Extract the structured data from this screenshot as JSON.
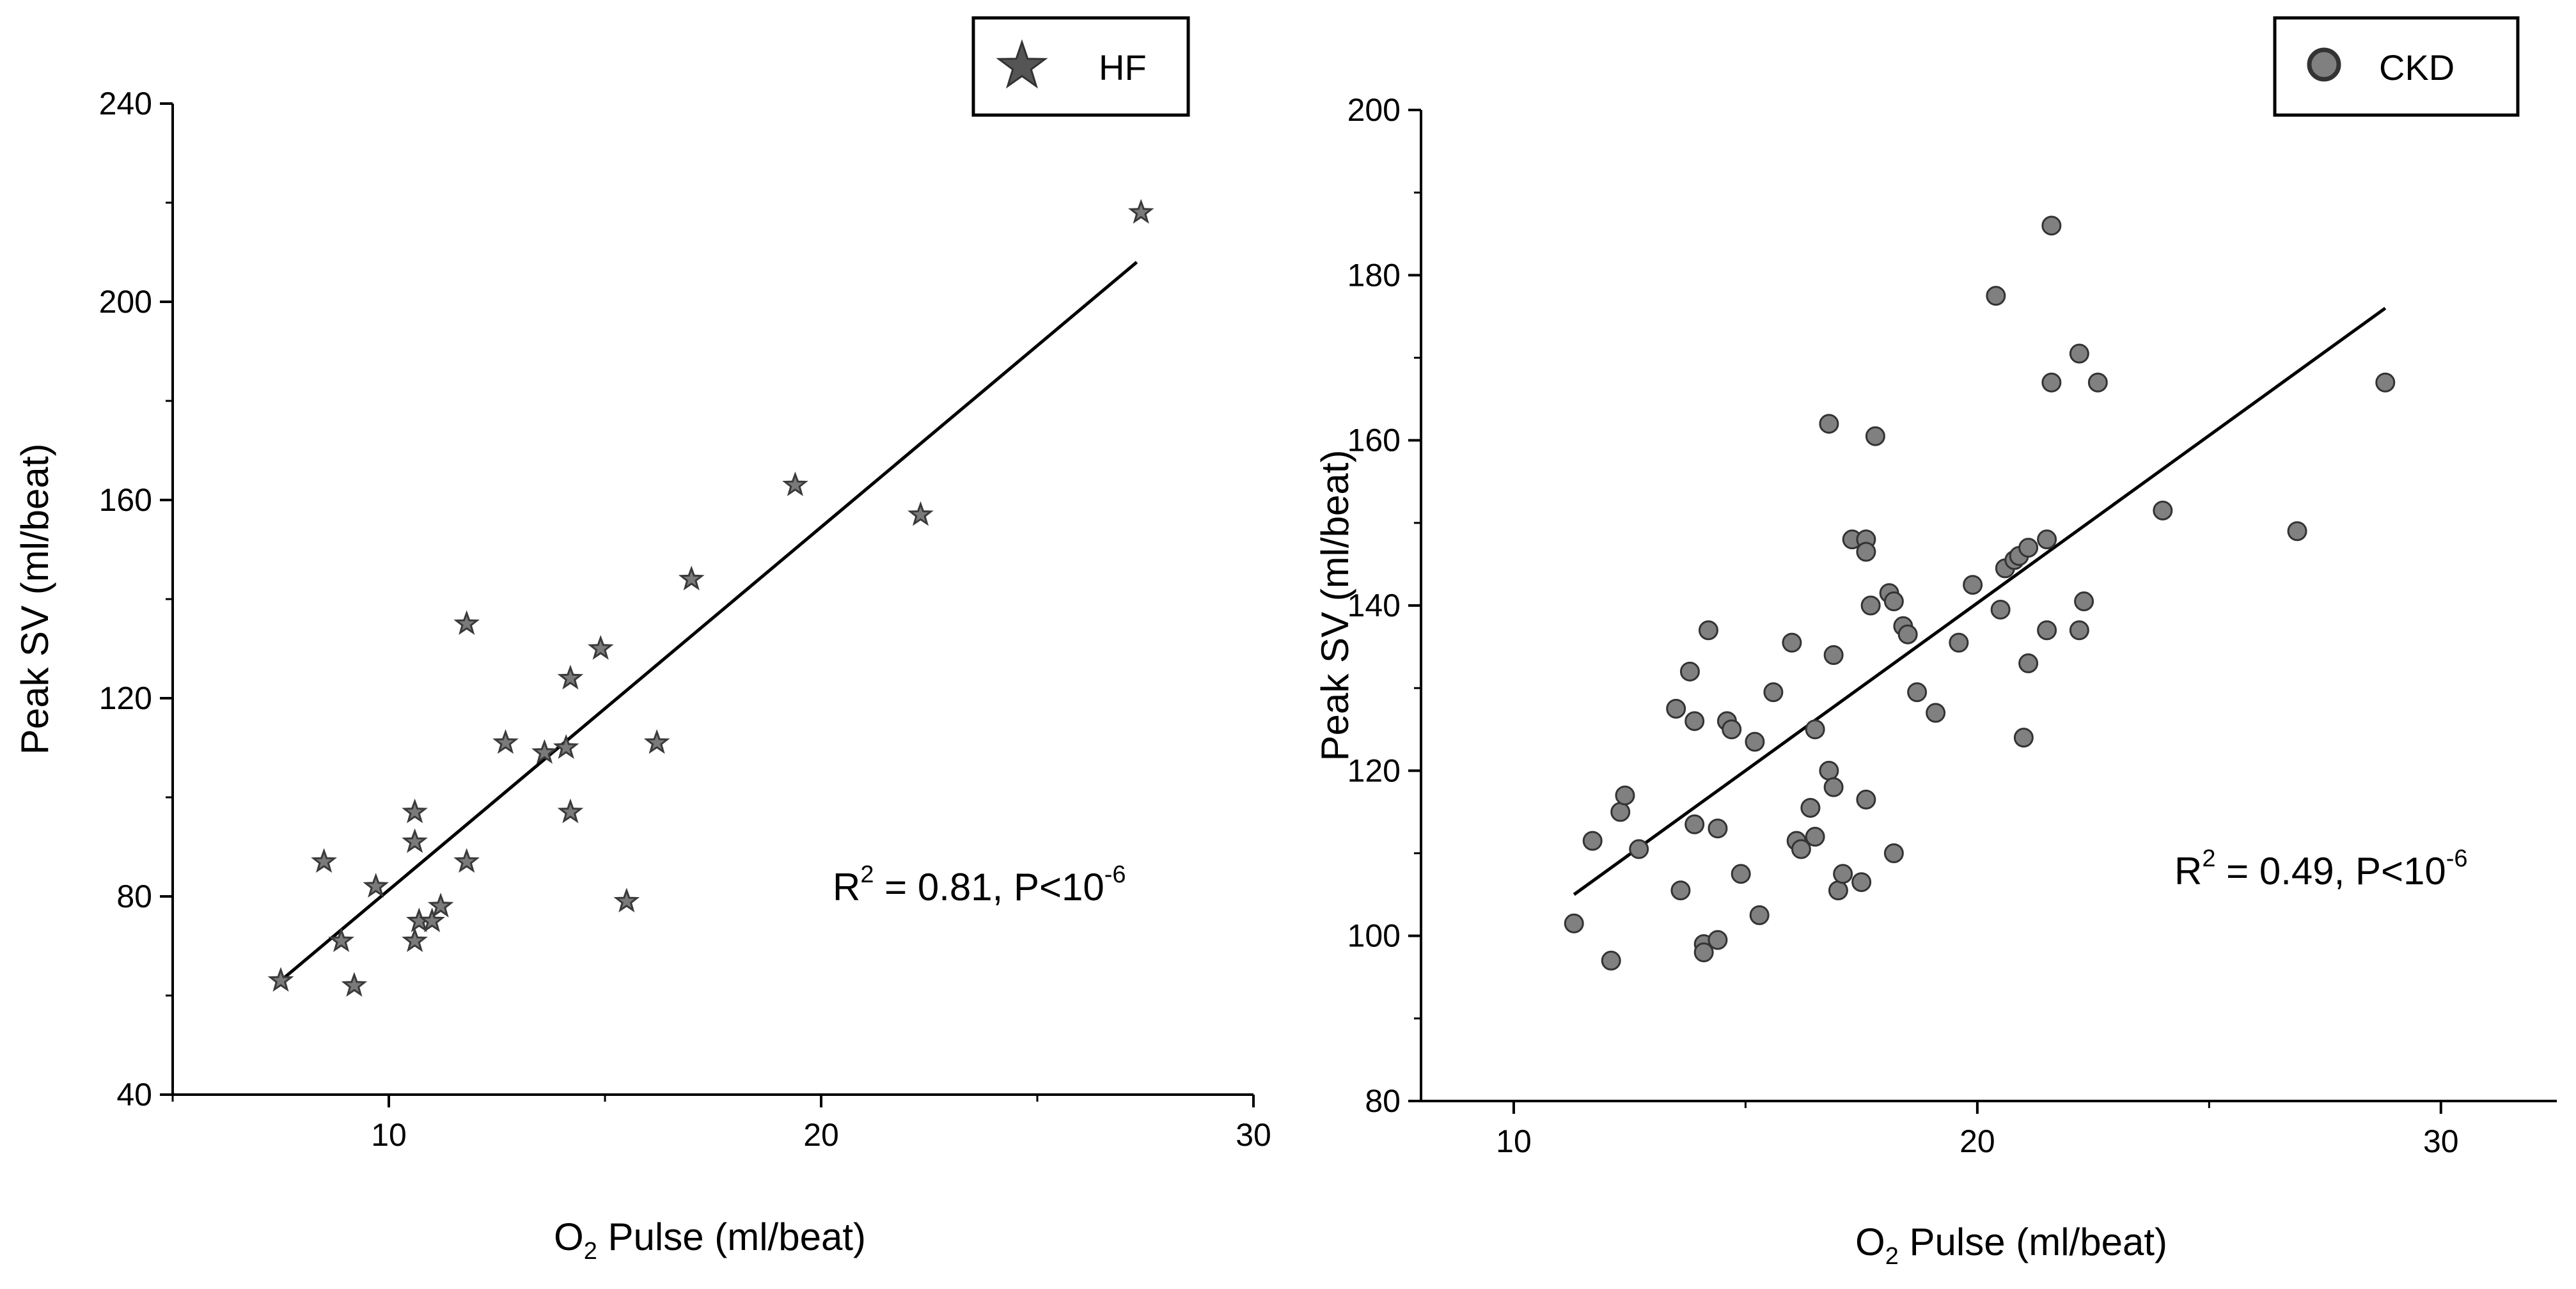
{
  "chart_data": [
    {
      "type": "scatter",
      "legend": "HF",
      "marker": "star",
      "xlabel_main": "O",
      "xlabel_sub": "2",
      "xlabel_rest": " Pulse (ml/beat)",
      "ylabel": "Peak SV (ml/beat)",
      "xlim": [
        5,
        30
      ],
      "ylim": [
        40,
        240
      ],
      "xticks": [
        10,
        20,
        30
      ],
      "yticks": [
        40,
        80,
        120,
        160,
        200,
        240
      ],
      "annotation": {
        "r_label": "R",
        "r_exp": "2",
        "r_value": " = 0.81, P<10",
        "p_exp": "-6"
      },
      "fit_line": [
        [
          7.5,
          63
        ],
        [
          27.3,
          208
        ]
      ],
      "points": [
        [
          7.5,
          63
        ],
        [
          8.5,
          87
        ],
        [
          8.9,
          71
        ],
        [
          9.2,
          62
        ],
        [
          9.7,
          82
        ],
        [
          10.6,
          97
        ],
        [
          10.6,
          91
        ],
        [
          10.6,
          71
        ],
        [
          10.7,
          75
        ],
        [
          11.0,
          75
        ],
        [
          11.2,
          78
        ],
        [
          11.8,
          135
        ],
        [
          11.8,
          87
        ],
        [
          12.7,
          111
        ],
        [
          13.6,
          109
        ],
        [
          14.1,
          110
        ],
        [
          14.2,
          124
        ],
        [
          14.2,
          97
        ],
        [
          14.9,
          130
        ],
        [
          15.5,
          79
        ],
        [
          16.2,
          111
        ],
        [
          17.0,
          144
        ],
        [
          19.4,
          163
        ],
        [
          22.3,
          157
        ],
        [
          27.4,
          218
        ]
      ],
      "colors": {
        "marker_fill": "#7a7a7a",
        "marker_stroke": "#3a3a3a",
        "line": "#000000"
      }
    },
    {
      "type": "scatter",
      "legend": "CKD",
      "marker": "circle",
      "xlabel_main": "O",
      "xlabel_sub": "2",
      "xlabel_rest": " Pulse (ml/beat)",
      "ylabel": "Peak SV (ml/beat)",
      "xlim": [
        8,
        32.5
      ],
      "ylim": [
        80,
        200
      ],
      "xticks": [
        10,
        20,
        30
      ],
      "yticks": [
        80,
        100,
        120,
        140,
        160,
        180,
        200
      ],
      "annotation": {
        "r_label": "R",
        "r_exp": "2",
        "r_value": " = 0.49, P<10",
        "p_exp": "-6"
      },
      "fit_line": [
        [
          11.3,
          105
        ],
        [
          28.8,
          176
        ]
      ],
      "points": [
        [
          11.3,
          101.5
        ],
        [
          11.7,
          111.5
        ],
        [
          12.1,
          97
        ],
        [
          12.3,
          115
        ],
        [
          12.4,
          117
        ],
        [
          12.7,
          110.5
        ],
        [
          13.5,
          127.5
        ],
        [
          13.6,
          105.5
        ],
        [
          13.8,
          132
        ],
        [
          13.9,
          126
        ],
        [
          13.9,
          113.5
        ],
        [
          14.1,
          99
        ],
        [
          14.1,
          98
        ],
        [
          14.2,
          137
        ],
        [
          14.4,
          113
        ],
        [
          14.4,
          99.5
        ],
        [
          14.6,
          126
        ],
        [
          14.7,
          125
        ],
        [
          14.9,
          107.5
        ],
        [
          15.2,
          123.5
        ],
        [
          15.3,
          102.5
        ],
        [
          15.6,
          129.5
        ],
        [
          16.0,
          135.5
        ],
        [
          16.1,
          111.5
        ],
        [
          16.2,
          110.5
        ],
        [
          16.4,
          115.5
        ],
        [
          16.5,
          125
        ],
        [
          16.5,
          112
        ],
        [
          16.8,
          162
        ],
        [
          16.8,
          120
        ],
        [
          16.9,
          118
        ],
        [
          16.9,
          134
        ],
        [
          17.0,
          105.5
        ],
        [
          17.1,
          107.5
        ],
        [
          17.3,
          148
        ],
        [
          17.5,
          106.5
        ],
        [
          17.6,
          116.5
        ],
        [
          17.6,
          148
        ],
        [
          17.6,
          146.5
        ],
        [
          17.7,
          140
        ],
        [
          17.8,
          160.5
        ],
        [
          18.1,
          141.5
        ],
        [
          18.2,
          140.5
        ],
        [
          18.2,
          110
        ],
        [
          18.4,
          137.5
        ],
        [
          18.5,
          136.5
        ],
        [
          18.7,
          129.5
        ],
        [
          19.1,
          127
        ],
        [
          19.6,
          135.5
        ],
        [
          19.9,
          142.5
        ],
        [
          20.4,
          177.5
        ],
        [
          20.5,
          139.5
        ],
        [
          20.6,
          144.5
        ],
        [
          20.8,
          145.5
        ],
        [
          20.9,
          146
        ],
        [
          21.0,
          124
        ],
        [
          21.1,
          133
        ],
        [
          21.1,
          147
        ],
        [
          21.5,
          148
        ],
        [
          21.5,
          137
        ],
        [
          21.6,
          186
        ],
        [
          21.6,
          167
        ],
        [
          22.2,
          170.5
        ],
        [
          22.2,
          137
        ],
        [
          22.3,
          140.5
        ],
        [
          22.6,
          167
        ],
        [
          24.0,
          151.5
        ],
        [
          26.9,
          149
        ],
        [
          28.8,
          167
        ]
      ],
      "colors": {
        "marker_fill": "#808080",
        "marker_stroke": "#333333",
        "line": "#000000"
      }
    }
  ]
}
